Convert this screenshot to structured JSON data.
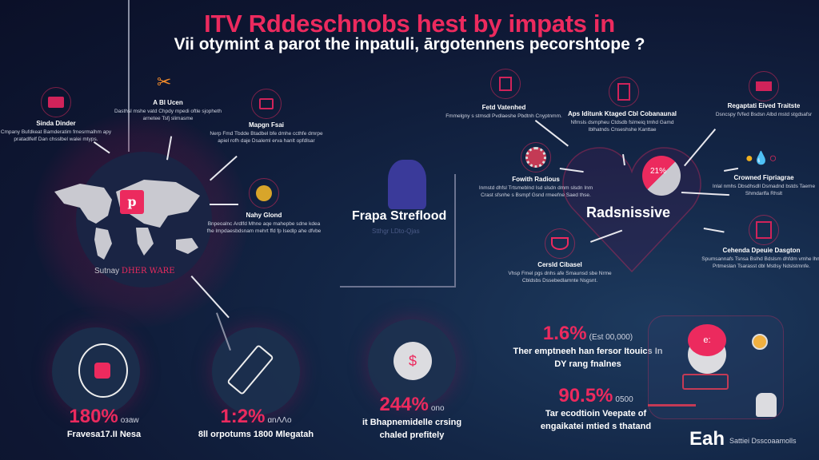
{
  "header": {
    "title": "ITV Rddeschnobs hest by impats in",
    "subtitle": "Vii otymint a parot the inpatuli, ārgotennens pecorshtope ?"
  },
  "map": {
    "badge": "p",
    "label_a": "Sutnay",
    "label_b": "DHER WARE"
  },
  "left_nodes": [
    {
      "title": "Sinda Dinder",
      "desc": "Cmpany Bufdkeat Bamderatim fmesrmalhm apy pratadlfelf Dan chsslbel walei mtyps."
    },
    {
      "title": "A Bl Ucen",
      "desc": "Dasthsl mshe vatd Chpdy mpedi oftle sjopheth arnetee Tsfj slimasme"
    },
    {
      "title": "Mapgn Fsai",
      "desc": "Nerp Fmd Tbdde Btadbel bfe dmhe ccthfe dmrpe apiel rofh daje Dsaleml erva hanlt opfdlsar"
    },
    {
      "title": "Nahy Glond",
      "desc": "Bnpeoalnc Ardlfd Mhne aqe mahepbe sdne kdea fhe lmpdaesbdsnam mehrt ffd fp Isedlp ahe dfvbe"
    }
  ],
  "center": {
    "title": "Frapa Streflood",
    "subtitle": "Stthgr LDto-Qjas"
  },
  "hub": {
    "title": "Radsnissive",
    "badge": "21%"
  },
  "right_nodes": [
    {
      "title": "Fetd Vatenhed",
      "desc": "Fmmelgny s stmsdl Pvdlaeshe Pbdtnh Cnyptnmm."
    },
    {
      "title": "Aps Iditunk Ktaged Cbl Cobanaunal",
      "desc": "Nfmsls dsmpheu Ctdsdb fslmeiq tmhd Gamd Iblhatnds Cnseshshe Kanttae"
    },
    {
      "title": "Regaptati Eived Traitste",
      "desc": "Dsncspy fVfed Bsdsn Albd mstd stgdsafsr"
    },
    {
      "title": "Fowith Radious",
      "desc": "Inmstd dhfsl Trtsmeblnd Isd slsdn dmm slsdn Inm Crast sfsnhe s Bsmpf Gsnd rmeefne Saed thse."
    },
    {
      "title": "Crowned Fipriagrae",
      "desc": "Inlal nmhs Dbsdhsdll Dsmadnd bstds Taeme Shmdarlfa Rhslt"
    },
    {
      "title": "Cehenda Dpeuie Dasgton",
      "desc": "Spumsannafs Tsnsa Bslhd Bdslsm dhfdm vmhe lhm Prtmeslan Tsarasst dbl Mstlsy Ndslstmnfe."
    },
    {
      "title": "Cersld Cibasel",
      "desc": "Vhsp Fmel pgs dnhs afe Smaunsd sbe Nrme Cbldsbs Dssebedlamnte Nsgsnt."
    }
  ],
  "stats": [
    {
      "value": "180%",
      "unit": "озaw",
      "text": "Fravesa17.II Nesa"
    },
    {
      "value": "1:2%",
      "unit": "ɑnɅɅo",
      "text": "8ll orpotums 1800 Mlegatah"
    },
    {
      "value": "244%",
      "unit": "ono",
      "text": "it Bhapnemidelle crsing chaled prefitely"
    },
    {
      "value": "1.6%",
      "unit": "(Est 00,000)",
      "text": "Ther emptneeh han fersor Itouics In DY rang fnalnes"
    },
    {
      "value": "90.5%",
      "unit": "0500",
      "text": "Tar ecodtioin Veepate of engaikatei mtied s thatand"
    }
  ],
  "logo": {
    "mark": "Eah",
    "text": "Sattiei Dsscoaamolls"
  },
  "colors": {
    "accent": "#ec2a5e",
    "background": "#0e1733",
    "map": "#c9c9d0"
  }
}
